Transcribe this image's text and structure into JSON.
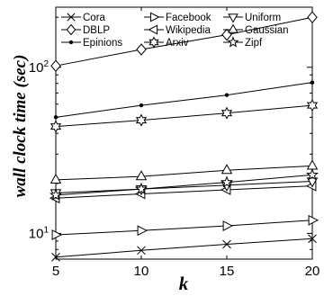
{
  "chart_data": {
    "type": "line",
    "title": "",
    "xlabel": "k",
    "ylabel": "wall clock time (sec)",
    "x": [
      5,
      10,
      15,
      20
    ],
    "xlim": [
      5,
      20
    ],
    "ylim": [
      7,
      230
    ],
    "yscale": "log",
    "x_ticks": [
      "5",
      "10",
      "15",
      "20"
    ],
    "y_ticks": [
      {
        "value": 10,
        "base": "10",
        "exp": "1"
      },
      {
        "value": 100,
        "base": "10",
        "exp": "2"
      }
    ],
    "grid": false,
    "legend_position": "top-left",
    "series": [
      {
        "name": "Cora",
        "marker": "x",
        "values": [
          7.2,
          7.9,
          8.6,
          9.3
        ]
      },
      {
        "name": "DBLP",
        "marker": "diamond",
        "values": [
          102,
          128,
          157,
          200
        ]
      },
      {
        "name": "Epinions",
        "marker": "dot",
        "values": [
          50,
          59,
          68,
          81
        ]
      },
      {
        "name": "Facebook",
        "marker": "triangle-right",
        "values": [
          9.8,
          10.4,
          11.1,
          12.0
        ]
      },
      {
        "name": "Wikipedia",
        "marker": "triangle-left",
        "values": [
          16.3,
          17.3,
          18.3,
          19.3
        ]
      },
      {
        "name": "Arxiv",
        "marker": "hexagram",
        "values": [
          44,
          48,
          53,
          59
        ]
      },
      {
        "name": "Uniform",
        "marker": "triangle-down",
        "values": [
          17.5,
          18.5,
          19.5,
          20.6
        ]
      },
      {
        "name": "Gaussian",
        "marker": "triangle-up",
        "values": [
          21,
          22,
          24,
          25.5
        ]
      },
      {
        "name": "Zipf",
        "marker": "pentagram",
        "values": [
          17,
          18.5,
          20.3,
          22.5
        ]
      }
    ]
  }
}
